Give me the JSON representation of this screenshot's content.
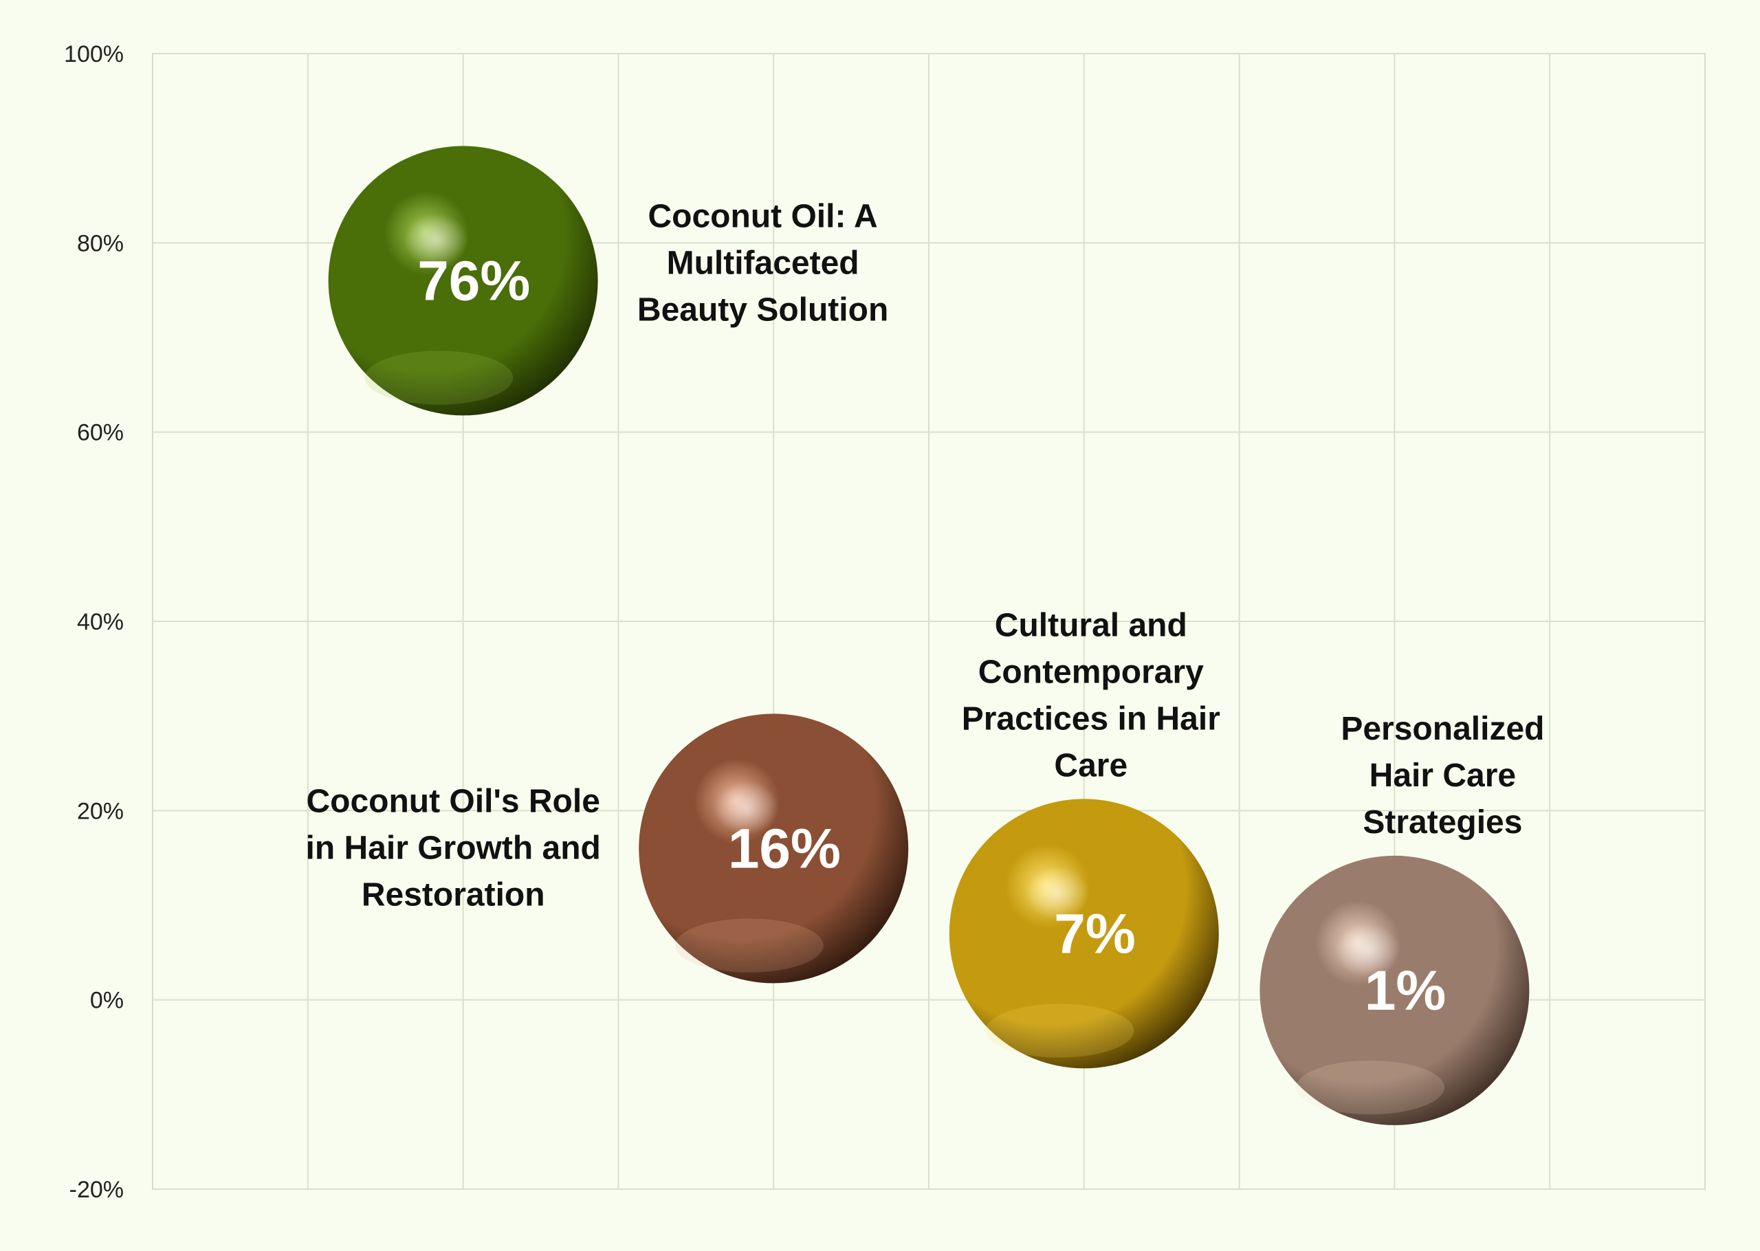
{
  "chart_data": {
    "type": "scatter",
    "title": "",
    "xlabel": "",
    "ylabel": "",
    "ylim": [
      -0.2,
      1.0
    ],
    "xlim": [
      0,
      10
    ],
    "y_ticks": [
      {
        "value": 1.0,
        "label": "100%"
      },
      {
        "value": 0.8,
        "label": "80%"
      },
      {
        "value": 0.6,
        "label": "60%"
      },
      {
        "value": 0.4,
        "label": "40%"
      },
      {
        "value": 0.2,
        "label": "20%"
      },
      {
        "value": 0.0,
        "label": "0%"
      },
      {
        "value": -0.2,
        "label": "-20%"
      }
    ],
    "grid": true,
    "points": [
      {
        "category": "Coconut Oil: A Multifaceted Beauty Solution",
        "category_lines": [
          "Coconut Oil: A",
          "Multifaceted",
          "Beauty Solution"
        ],
        "x": 2,
        "y": 0.76,
        "value_label": "76%",
        "color": "#4a6e08",
        "highlight": "#a6cc55",
        "shadow": "#1c2a02",
        "label_position": "right"
      },
      {
        "category": "Coconut Oil's Role in Hair Growth and Restoration",
        "category_lines": [
          "Coconut Oil's Role",
          "in Hair Growth and",
          "Restoration"
        ],
        "x": 4,
        "y": 0.16,
        "value_label": "16%",
        "color": "#8a4f34",
        "highlight": "#f0b89a",
        "shadow": "#2b160c",
        "label_position": "left"
      },
      {
        "category": "Cultural and Contemporary Practices in Hair Care",
        "category_lines": [
          "Cultural and",
          "Contemporary",
          "Practices in Hair",
          "Care"
        ],
        "x": 6,
        "y": 0.07,
        "value_label": "7%",
        "color": "#c49a0e",
        "highlight": "#ffe36a",
        "shadow": "#3e2e02",
        "label_position": "top"
      },
      {
        "category": "Personalized Hair Care Strategies",
        "category_lines": [
          "Personalized",
          "Hair Care",
          "Strategies"
        ],
        "x": 8,
        "y": 0.01,
        "value_label": "1%",
        "color": "#9a7c6c",
        "highlight": "#f3d7c4",
        "shadow": "#3a2b22",
        "label_position": "top"
      }
    ]
  }
}
